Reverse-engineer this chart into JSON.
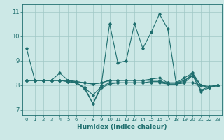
{
  "xlabel": "Humidex (Indice chaleur)",
  "xlim": [
    -0.5,
    23.5
  ],
  "ylim": [
    6.8,
    11.3
  ],
  "yticks": [
    7,
    8,
    9,
    10,
    11
  ],
  "xticks": [
    0,
    1,
    2,
    3,
    4,
    5,
    6,
    7,
    8,
    9,
    10,
    11,
    12,
    13,
    14,
    15,
    16,
    17,
    18,
    19,
    20,
    21,
    22,
    23
  ],
  "bg_color": "#cce8e6",
  "grid_color": "#a0c8c5",
  "line_color": "#1e6e6e",
  "lines": [
    [
      9.5,
      8.2,
      8.2,
      8.2,
      8.5,
      8.2,
      8.1,
      7.9,
      7.25,
      8.0,
      10.5,
      8.9,
      9.0,
      10.5,
      9.5,
      10.15,
      10.9,
      10.3,
      8.1,
      8.3,
      8.5,
      8.0,
      7.9,
      8.0
    ],
    [
      8.2,
      8.2,
      8.2,
      8.2,
      8.2,
      8.15,
      8.1,
      7.85,
      7.25,
      7.9,
      8.05,
      8.1,
      8.1,
      8.1,
      8.1,
      8.1,
      8.1,
      8.05,
      8.05,
      8.1,
      8.4,
      7.75,
      7.9,
      8.0
    ],
    [
      8.2,
      8.2,
      8.2,
      8.2,
      8.2,
      8.15,
      8.1,
      7.9,
      7.6,
      7.95,
      8.1,
      8.1,
      8.1,
      8.1,
      8.1,
      8.15,
      8.15,
      8.1,
      8.1,
      8.15,
      8.5,
      7.8,
      7.95,
      8.0
    ],
    [
      8.2,
      8.2,
      8.2,
      8.2,
      8.2,
      8.2,
      8.15,
      8.1,
      8.05,
      8.1,
      8.2,
      8.2,
      8.2,
      8.2,
      8.2,
      8.2,
      8.2,
      8.05,
      8.05,
      8.1,
      8.1,
      8.0,
      7.95,
      8.0
    ],
    [
      8.2,
      8.2,
      8.2,
      8.2,
      8.2,
      8.2,
      8.15,
      8.1,
      8.05,
      8.1,
      8.2,
      8.2,
      8.2,
      8.2,
      8.2,
      8.25,
      8.3,
      8.1,
      8.1,
      8.2,
      8.4,
      8.0,
      7.9,
      8.0
    ]
  ],
  "marker": "D",
  "markersize": 1.8,
  "linewidth": 0.8
}
